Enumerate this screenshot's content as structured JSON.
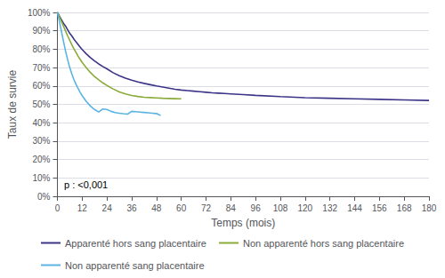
{
  "chart_data": {
    "type": "line",
    "xlabel": "Temps (mois)",
    "ylabel": "Taux de survie",
    "annotation": "p : <0,001",
    "xlim": [
      0,
      180
    ],
    "ylim": [
      0,
      1.0
    ],
    "xticks": [
      0,
      12,
      24,
      36,
      48,
      60,
      72,
      84,
      96,
      108,
      120,
      132,
      144,
      156,
      168,
      180
    ],
    "yticks": [
      {
        "value": 0,
        "label": "0%"
      },
      {
        "value": 0.1,
        "label": "10%"
      },
      {
        "value": 0.2,
        "label": "20%"
      },
      {
        "value": 0.3,
        "label": "30%"
      },
      {
        "value": 0.4,
        "label": "40%"
      },
      {
        "value": 0.5,
        "label": "50%"
      },
      {
        "value": 0.6,
        "label": "60%"
      },
      {
        "value": 0.7,
        "label": "70%"
      },
      {
        "value": 0.8,
        "label": "80%"
      },
      {
        "value": 0.9,
        "label": "90%"
      },
      {
        "value": 1.0,
        "label": "100%"
      }
    ],
    "grid": true,
    "legend": "bottom",
    "series": [
      {
        "name": "Apparenté hors sang placentaire",
        "color": "#3c3487",
        "x": [
          0,
          1,
          2,
          3,
          4,
          5,
          6,
          7,
          8,
          9,
          10,
          11,
          12,
          14,
          16,
          18,
          20,
          22,
          24,
          27,
          30,
          33,
          36,
          39,
          42,
          45,
          48,
          51,
          54,
          57,
          60,
          63,
          66,
          69,
          72,
          75,
          78,
          81,
          84,
          90,
          96,
          108,
          120,
          132,
          144,
          156,
          168,
          180
        ],
        "values": [
          1.0,
          0.98,
          0.96,
          0.94,
          0.925,
          0.905,
          0.886,
          0.872,
          0.855,
          0.84,
          0.826,
          0.812,
          0.798,
          0.775,
          0.754,
          0.736,
          0.72,
          0.706,
          0.693,
          0.672,
          0.656,
          0.643,
          0.632,
          0.622,
          0.614,
          0.607,
          0.6,
          0.594,
          0.588,
          0.582,
          0.578,
          0.575,
          0.572,
          0.569,
          0.566,
          0.563,
          0.561,
          0.559,
          0.557,
          0.553,
          0.549,
          0.542,
          0.536,
          0.533,
          0.53,
          0.527,
          0.524,
          0.521
        ]
      },
      {
        "name": "Non apparenté hors sang placentaire",
        "color": "#8aab38",
        "x": [
          0,
          1,
          2,
          3,
          4,
          5,
          6,
          7,
          8,
          9,
          10,
          11,
          12,
          14,
          16,
          18,
          20,
          22,
          24,
          27,
          30,
          33,
          36,
          39,
          42,
          45,
          48,
          51,
          54,
          57,
          60
        ],
        "values": [
          1.0,
          0.975,
          0.95,
          0.924,
          0.898,
          0.872,
          0.848,
          0.824,
          0.803,
          0.783,
          0.763,
          0.745,
          0.728,
          0.699,
          0.673,
          0.651,
          0.633,
          0.617,
          0.603,
          0.584,
          0.568,
          0.557,
          0.548,
          0.543,
          0.539,
          0.537,
          0.535,
          0.533,
          0.532,
          0.531,
          0.53
        ]
      },
      {
        "name": "Non apparenté sang placentaire",
        "color": "#5ab4e2",
        "x": [
          0,
          1,
          2,
          3,
          4,
          5,
          6,
          7,
          8,
          9,
          10,
          11,
          12,
          14,
          16,
          18,
          20,
          22,
          24,
          26,
          28,
          30,
          32,
          34,
          36,
          38,
          40,
          42,
          44,
          46,
          48,
          50
        ],
        "values": [
          1.0,
          0.95,
          0.895,
          0.84,
          0.788,
          0.742,
          0.7,
          0.665,
          0.635,
          0.609,
          0.587,
          0.566,
          0.547,
          0.516,
          0.491,
          0.472,
          0.458,
          0.475,
          0.472,
          0.462,
          0.455,
          0.452,
          0.449,
          0.447,
          0.462,
          0.46,
          0.458,
          0.456,
          0.454,
          0.452,
          0.45,
          0.44
        ]
      }
    ]
  }
}
